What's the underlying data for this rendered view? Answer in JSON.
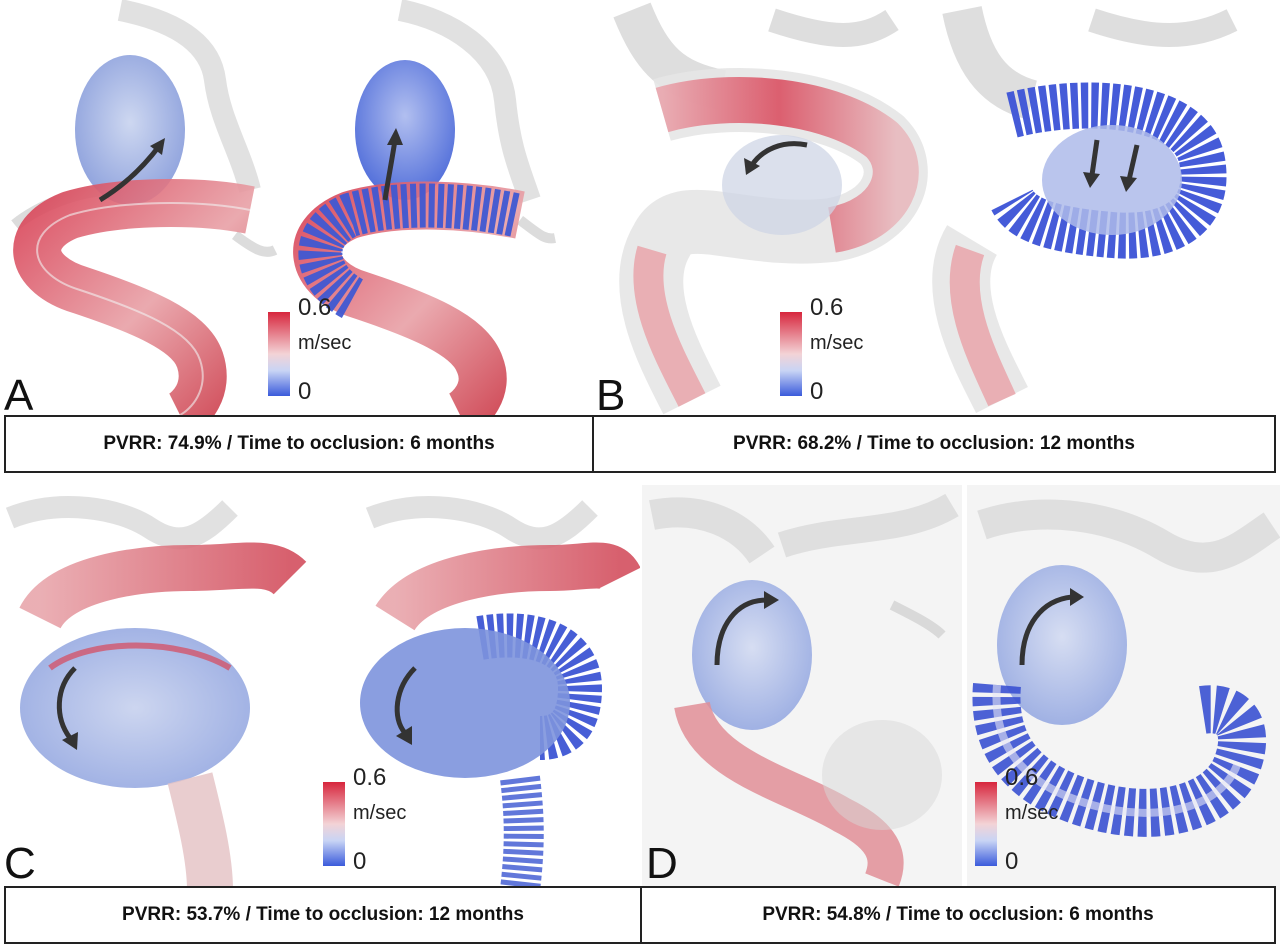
{
  "panels": [
    {
      "letter": "A",
      "caption": "PVRR: 74.9% / Time to occlusion: 6 months",
      "scale": {
        "max_label": "0.6",
        "unit_label": "m/sec",
        "min_label": "0"
      }
    },
    {
      "letter": "B",
      "caption": "PVRR: 68.2% / Time to occlusion: 12 months",
      "scale": {
        "max_label": "0.6",
        "unit_label": "m/sec",
        "min_label": "0"
      }
    },
    {
      "letter": "C",
      "caption": "PVRR: 53.7% / Time to occlusion: 12 months",
      "scale": {
        "max_label": "0.6",
        "unit_label": "m/sec",
        "min_label": "0"
      }
    },
    {
      "letter": "D",
      "caption": "PVRR: 54.8% / Time to occlusion: 6 months",
      "scale": {
        "max_label": "0.6",
        "unit_label": "m/sec",
        "min_label": "0"
      }
    }
  ],
  "colors": {
    "high_velocity": "#d7263d",
    "low_velocity": "#3b5bdb",
    "vessel_wall": "#d9d9d9",
    "arrow": "#333333",
    "stent_mesh": "#2f4fd8"
  }
}
